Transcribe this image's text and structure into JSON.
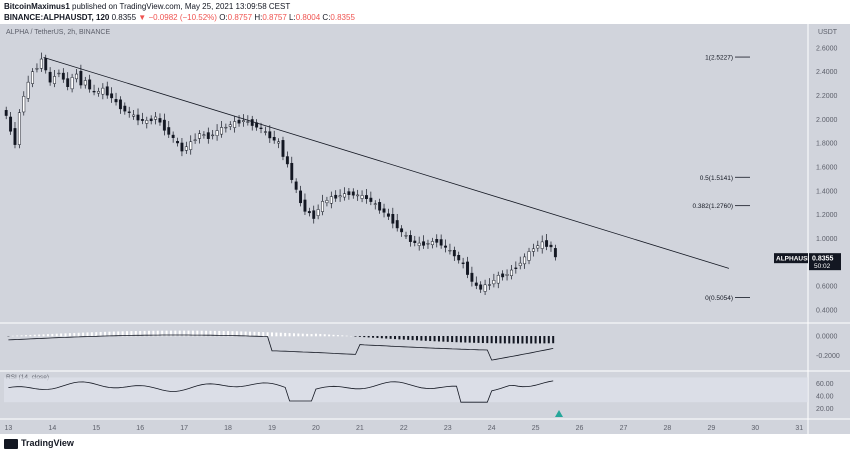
{
  "header": {
    "author": "BitcoinMaximus1",
    "published": "published on TradingView.com, May 25, 2021 13:09:58 CEST",
    "symbol_line": "BINANCE:ALPHAUSDT, 120",
    "price": "0.8355",
    "change": "−0.0982 (−10.52%)",
    "o_label": "O:",
    "o_val": "0.8757",
    "h_label": "H:",
    "h_val": "0.8757",
    "l_label": "L:",
    "l_val": "0.8004",
    "c_label": "C:",
    "c_val": "0.8355"
  },
  "pane_title": "ALPHA / TetherUS, 2h, BINANCE",
  "footer": {
    "brand": "TradingView"
  },
  "colors": {
    "bg": "#d1d4dc",
    "candle": "#131722",
    "down": "#ef5350",
    "rsi_marker": "#26a69a"
  },
  "chart_data": {
    "type": "candlestick",
    "price_axis": {
      "unit": "USDT",
      "min": 0.3,
      "max": 2.8,
      "ticks": [
        "2.6000",
        "2.4000",
        "2.2000",
        "2.0000",
        "1.8000",
        "1.6000",
        "1.4000",
        "1.2000",
        "1.0000",
        "0.8000",
        "0.6000",
        "0.4000"
      ]
    },
    "x_ticks": [
      "13",
      "14",
      "15",
      "16",
      "17",
      "18",
      "19",
      "20",
      "21",
      "22",
      "23",
      "24",
      "25",
      "26",
      "27",
      "28",
      "29",
      "30",
      "31"
    ],
    "last_price_label": {
      "symbol": "ALPHAUSDT",
      "value": "0.8355",
      "countdown": "50:02"
    },
    "trendline": {
      "from": {
        "day": 13.8,
        "price": 2.52
      },
      "to": {
        "day": 29.4,
        "price": 0.75
      }
    },
    "fib_levels": [
      {
        "label": "1(2.5227)",
        "value": 2.5227
      },
      {
        "label": "0.5(1.5141)",
        "value": 1.5141
      },
      {
        "label": "0.382(1.2760)",
        "value": 1.276
      },
      {
        "label": "0(0.5054)",
        "value": 0.5054
      }
    ],
    "price_series": [
      [
        12.9,
        2.1
      ],
      [
        13.0,
        2.02
      ],
      [
        13.1,
        1.9
      ],
      [
        13.2,
        1.8
      ],
      [
        13.3,
        2.05
      ],
      [
        13.4,
        2.2
      ],
      [
        13.5,
        2.3
      ],
      [
        13.6,
        2.4
      ],
      [
        13.7,
        2.44
      ],
      [
        13.8,
        2.5
      ],
      [
        13.9,
        2.42
      ],
      [
        14.0,
        2.3
      ],
      [
        14.1,
        2.36
      ],
      [
        14.2,
        2.4
      ],
      [
        14.3,
        2.33
      ],
      [
        14.4,
        2.28
      ],
      [
        14.5,
        2.34
      ],
      [
        14.6,
        2.38
      ],
      [
        14.7,
        2.3
      ],
      [
        14.8,
        2.32
      ],
      [
        14.9,
        2.26
      ],
      [
        15.0,
        2.22
      ],
      [
        15.2,
        2.25
      ],
      [
        15.4,
        2.18
      ],
      [
        15.6,
        2.1
      ],
      [
        15.8,
        2.05
      ],
      [
        16.0,
        2.0
      ],
      [
        16.2,
        1.98
      ],
      [
        16.4,
        2.02
      ],
      [
        16.6,
        1.92
      ],
      [
        16.8,
        1.84
      ],
      [
        17.0,
        1.74
      ],
      [
        17.2,
        1.8
      ],
      [
        17.4,
        1.88
      ],
      [
        17.6,
        1.85
      ],
      [
        17.8,
        1.9
      ],
      [
        18.0,
        1.94
      ],
      [
        18.2,
        1.97
      ],
      [
        18.4,
        1.99
      ],
      [
        18.6,
        1.96
      ],
      [
        18.8,
        1.92
      ],
      [
        19.0,
        1.85
      ],
      [
        19.2,
        1.8
      ],
      [
        19.3,
        1.7
      ],
      [
        19.4,
        1.62
      ],
      [
        19.5,
        1.5
      ],
      [
        19.6,
        1.4
      ],
      [
        19.7,
        1.3
      ],
      [
        19.8,
        1.24
      ],
      [
        20.0,
        1.18
      ],
      [
        20.1,
        1.25
      ],
      [
        20.2,
        1.3
      ],
      [
        20.4,
        1.34
      ],
      [
        20.6,
        1.36
      ],
      [
        20.8,
        1.38
      ],
      [
        21.0,
        1.36
      ],
      [
        21.2,
        1.34
      ],
      [
        21.4,
        1.28
      ],
      [
        21.6,
        1.22
      ],
      [
        21.8,
        1.14
      ],
      [
        22.0,
        1.05
      ],
      [
        22.2,
        0.98
      ],
      [
        22.4,
        0.95
      ],
      [
        22.6,
        0.96
      ],
      [
        22.8,
        0.98
      ],
      [
        23.0,
        0.92
      ],
      [
        23.2,
        0.86
      ],
      [
        23.4,
        0.78
      ],
      [
        23.6,
        0.64
      ],
      [
        23.7,
        0.6
      ],
      [
        23.8,
        0.58
      ],
      [
        24.0,
        0.62
      ],
      [
        24.2,
        0.68
      ],
      [
        24.4,
        0.7
      ],
      [
        24.6,
        0.76
      ],
      [
        24.8,
        0.84
      ],
      [
        25.0,
        0.92
      ],
      [
        25.2,
        0.96
      ],
      [
        25.4,
        0.93
      ],
      [
        25.5,
        0.84
      ]
    ],
    "macd": {
      "ticks": [
        "0.0000",
        "-0.2000"
      ]
    },
    "rsi": {
      "title": "RSI (14, close)",
      "ticks": [
        "60.00",
        "40.00",
        "20.00"
      ],
      "upper_band": 70,
      "lower_band": 30
    }
  }
}
